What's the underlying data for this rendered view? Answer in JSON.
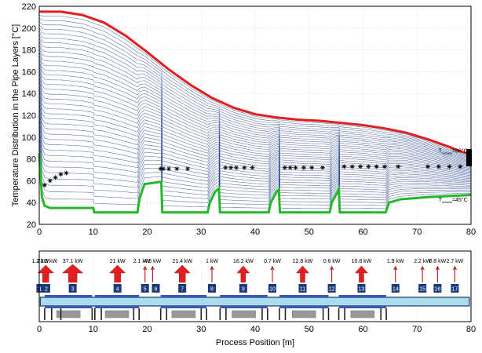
{
  "colors": {
    "outer_curve": "#e02020",
    "inner_curve": "#22b82a",
    "layers": "#1e3c8c",
    "arrow": "#e02020",
    "segment_box": "#1a3a7a",
    "pipe": "#a9dcee",
    "base": "#999999",
    "marker": "#000000"
  },
  "chart_data": [
    {
      "type": "line",
      "ylabel": "Temperature Distribution in the Pipe Layers [°C]",
      "xlim": [
        0,
        80
      ],
      "ylim": [
        20,
        220
      ],
      "xticks": [
        0,
        10,
        20,
        30,
        40,
        50,
        60,
        70,
        80
      ],
      "yticks": [
        20,
        40,
        60,
        80,
        100,
        120,
        140,
        160,
        180,
        200,
        220
      ],
      "grid": true,
      "outer_layer": {
        "x": [
          0,
          4,
          8,
          12,
          16,
          20,
          24,
          28,
          32,
          36,
          40,
          44,
          48,
          52,
          56,
          60,
          64,
          68,
          72,
          76,
          78,
          80
        ],
        "y": [
          215,
          215,
          212,
          205,
          193,
          178,
          162,
          148,
          136,
          127,
          121,
          118,
          116,
          115,
          113,
          111,
          108,
          104,
          98,
          91,
          87,
          84
        ]
      },
      "inner_layer": {
        "x": [
          0,
          0.5,
          1,
          2,
          10,
          10.2,
          18.2,
          18.6,
          19.5,
          22.6,
          22.8,
          31.2,
          31.6,
          32.6,
          33.3,
          33.5,
          42.5,
          42.9,
          44.0,
          44.4,
          44.6,
          53.8,
          54.2,
          55.3,
          55.5,
          55.7,
          64.2,
          64.8,
          67,
          72,
          76,
          80
        ],
        "y": [
          85,
          45,
          37,
          35,
          35,
          31,
          31,
          44,
          57,
          59,
          31,
          31,
          40,
          50,
          53,
          31,
          31,
          40,
          50,
          52,
          31,
          31,
          40,
          50,
          52,
          31,
          31,
          40,
          43,
          45,
          46,
          47
        ]
      },
      "markers_x": [
        1,
        2,
        3,
        4,
        5,
        22.5,
        23,
        24,
        25.5,
        27.5,
        34.5,
        35.5,
        36.5,
        38,
        39.5,
        45.5,
        46.5,
        47.5,
        49,
        50.5,
        52.5,
        56.5,
        58,
        59.5,
        61,
        62.5,
        64,
        66.5,
        72,
        74,
        76,
        78
      ],
      "markers_y": [
        56,
        60,
        63,
        66,
        67,
        71,
        71,
        71,
        71,
        71,
        72,
        72,
        72,
        72,
        72,
        72,
        72,
        72,
        72,
        72,
        72,
        73,
        73,
        73,
        73,
        73,
        73,
        73,
        73,
        73,
        73,
        73
      ],
      "annotations": [
        {
          "main": "T",
          "sub": "outside",
          "text": "=86°C",
          "x": 74,
          "y": 86
        },
        {
          "main": "T",
          "sub": "outside",
          "text": "=45°C",
          "x": 74,
          "y": 41
        }
      ]
    },
    {
      "type": "diagram",
      "xlabel": "Process Position [m]",
      "xlim": [
        0,
        80
      ],
      "xticks": [
        0,
        10,
        20,
        30,
        40,
        50,
        60,
        70,
        80
      ],
      "power_labels": [
        {
          "text": "1.2 kW",
          "x": 0.2
        },
        {
          "text": "23.5 kW",
          "x": 1.5
        },
        {
          "text": "37.1 kW",
          "x": 6.2
        },
        {
          "text": "21 kW",
          "x": 14.5
        },
        {
          "text": "2.1 kW",
          "x": 19.0
        },
        {
          "text": "4.6 kW",
          "x": 21.0
        },
        {
          "text": "21.4 kW",
          "x": 26.5
        },
        {
          "text": "1 kW",
          "x": 32.0
        },
        {
          "text": "16.2 kW",
          "x": 37.8
        },
        {
          "text": "0.7 kW",
          "x": 43.2
        },
        {
          "text": "12.8 kW",
          "x": 48.8
        },
        {
          "text": "0.6 kW",
          "x": 54.2
        },
        {
          "text": "10.8 kW",
          "x": 59.7
        },
        {
          "text": "1.9 kW",
          "x": 66.0
        },
        {
          "text": "2.2 kW",
          "x": 71.0
        },
        {
          "text": "0.8 kW",
          "x": 73.8
        },
        {
          "text": "2.7 kW",
          "x": 77.0
        }
      ],
      "arrows": [
        {
          "x": 1.2,
          "size": 3
        },
        {
          "x": 6.2,
          "size": 4
        },
        {
          "x": 14.5,
          "size": 3
        },
        {
          "x": 26.5,
          "size": 3
        },
        {
          "x": 37.8,
          "size": 2
        },
        {
          "x": 48.8,
          "size": 2
        },
        {
          "x": 59.7,
          "size": 2
        },
        {
          "x": 19.6,
          "size": 0
        },
        {
          "x": 21.0,
          "size": 0
        },
        {
          "x": 32.0,
          "size": 0
        },
        {
          "x": 43.2,
          "size": 0
        },
        {
          "x": 54.2,
          "size": 0
        },
        {
          "x": 66.0,
          "size": 0
        },
        {
          "x": 71.0,
          "size": 0
        },
        {
          "x": 73.8,
          "size": 0
        },
        {
          "x": 77.0,
          "size": 0
        }
      ],
      "segments": [
        {
          "label": "1",
          "x": 0.2
        },
        {
          "label": "2",
          "x": 1.3
        },
        {
          "label": "3",
          "x": 6.2
        },
        {
          "label": "4",
          "x": 14.5
        },
        {
          "label": "5",
          "x": 19.6
        },
        {
          "label": "6",
          "x": 21.6
        },
        {
          "label": "7",
          "x": 26.5
        },
        {
          "label": "8",
          "x": 32.0
        },
        {
          "label": "9",
          "x": 37.8
        },
        {
          "label": "10",
          "x": 43.2
        },
        {
          "label": "11",
          "x": 48.8
        },
        {
          "label": "12",
          "x": 54.2
        },
        {
          "label": "13",
          "x": 59.7
        },
        {
          "label": "14",
          "x": 66.0
        },
        {
          "label": "15",
          "x": 71.0
        },
        {
          "label": "16",
          "x": 73.8
        },
        {
          "label": "17",
          "x": 77.0
        }
      ],
      "heating_zones": [
        [
          1,
          9.8
        ],
        [
          10.3,
          18.5
        ],
        [
          22.5,
          31
        ],
        [
          33.5,
          42.3
        ],
        [
          44.5,
          53.6
        ],
        [
          55.5,
          64.3
        ]
      ],
      "supports": [
        1.0,
        2.3,
        4.0,
        9.8,
        10.3,
        11.5,
        17.5,
        18.5,
        22.5,
        23.6,
        30.0,
        31.0,
        33.5,
        34.6,
        41.3,
        42.3,
        44.5,
        45.6,
        52.6,
        53.6,
        55.5,
        56.6,
        63.3,
        64.3
      ]
    }
  ]
}
